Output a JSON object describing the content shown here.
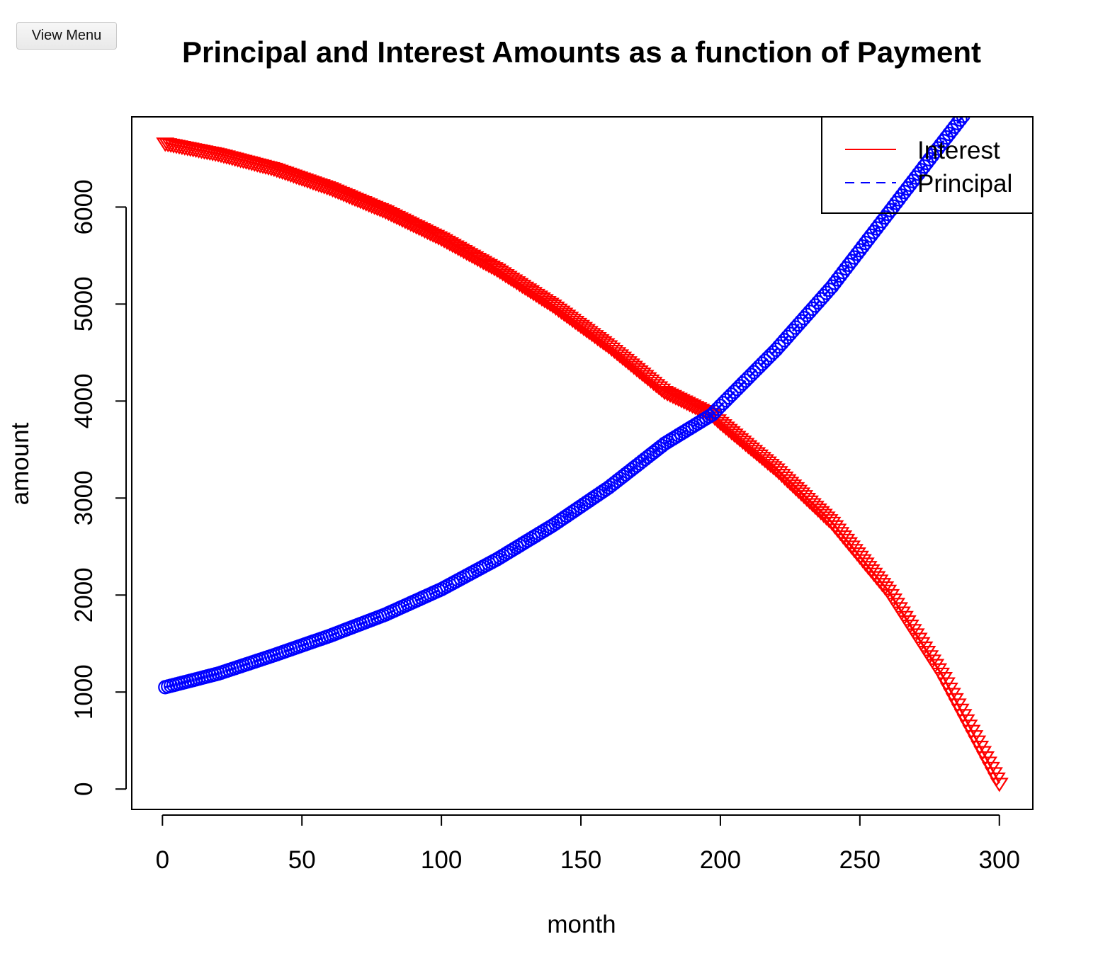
{
  "toolbar": {
    "view_menu_label": "View Menu"
  },
  "chart_data": {
    "type": "scatter",
    "title": "Principal and Interest Amounts as a function of Payment",
    "xlabel": "month",
    "ylabel": "amount",
    "xlim": [
      -11,
      312
    ],
    "ylim": [
      -210,
      6930
    ],
    "x_ticks": [
      0,
      50,
      100,
      150,
      200,
      250,
      300
    ],
    "x_tick_labels": [
      "0",
      "50",
      "100",
      "150",
      "200",
      "250",
      "300"
    ],
    "y_ticks": [
      0,
      1000,
      2000,
      3000,
      4000,
      5000,
      6000
    ],
    "y_tick_labels": [
      "0",
      "1000",
      "2000",
      "3000",
      "4000",
      "5000",
      "6000"
    ],
    "grid": false,
    "legend_position": "top-right",
    "series": [
      {
        "name": "Interest",
        "color": "#ff0000",
        "line_style": "solid",
        "marker": "triangle-down",
        "x": [
          1,
          20,
          40,
          60,
          80,
          100,
          120,
          140,
          160,
          180,
          197,
          200,
          220,
          240,
          260,
          280,
          300
        ],
        "y": [
          6660,
          6550,
          6400,
          6200,
          5960,
          5680,
          5360,
          4990,
          4570,
          4100,
          3860,
          3780,
          3300,
          2750,
          2050,
          1150,
          60
        ]
      },
      {
        "name": "Principal",
        "color": "#0000ff",
        "line_style": "dashed",
        "marker": "circle",
        "x": [
          1,
          20,
          40,
          60,
          80,
          100,
          120,
          140,
          160,
          180,
          197,
          200,
          220,
          240,
          260,
          280,
          287
        ],
        "y": [
          1050,
          1190,
          1380,
          1580,
          1800,
          2060,
          2370,
          2720,
          3110,
          3560,
          3860,
          3950,
          4530,
          5180,
          5930,
          6680,
          6940
        ]
      }
    ]
  }
}
